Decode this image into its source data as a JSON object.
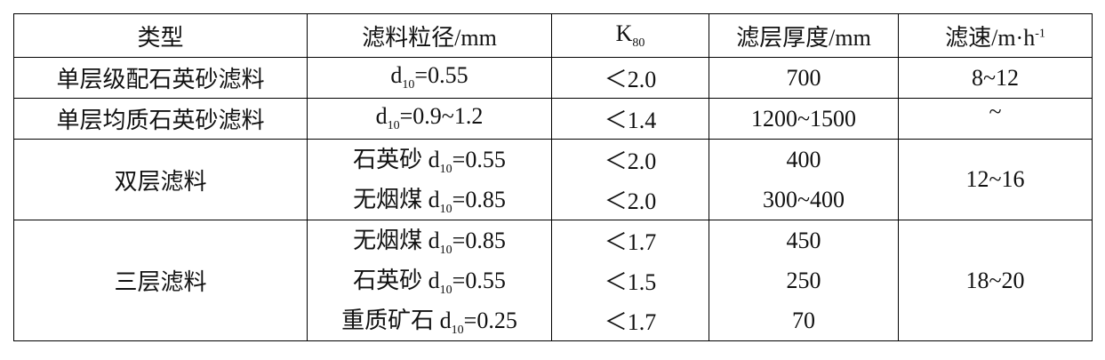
{
  "table": {
    "header": [
      {
        "text": "类型"
      },
      {
        "text": "滤料粒径/mm"
      },
      {
        "text": "K",
        "sub": "80"
      },
      {
        "text": "滤层厚度/mm"
      },
      {
        "text": "滤速/m·h",
        "sup": "-1"
      }
    ],
    "groups": [
      {
        "type": "单层级配石英砂滤料",
        "speed": "8~12",
        "items": [
          {
            "size": {
              "text": "d",
              "sub": "10",
              "after": "=0.55"
            },
            "k80": "＜2.0",
            "thickness": "700"
          }
        ]
      },
      {
        "type": "单层均质石英砂滤料",
        "speed": "~",
        "items": [
          {
            "size": {
              "text": "d",
              "sub": "10",
              "after": "=0.9~1.2"
            },
            "k80": "＜1.4",
            "thickness": "1200~1500"
          }
        ]
      },
      {
        "type": "双层滤料",
        "speed": "12~16",
        "items": [
          {
            "size": {
              "text": "石英砂 d",
              "sub": "10",
              "after": "=0.55"
            },
            "k80": "＜2.0",
            "thickness": "400"
          },
          {
            "size": {
              "text": "无烟煤 d",
              "sub": "10",
              "after": "=0.85"
            },
            "k80": "＜2.0",
            "thickness": "300~400"
          }
        ]
      },
      {
        "type": "三层滤料",
        "speed": "18~20",
        "items": [
          {
            "size": {
              "text": "无烟煤 d",
              "sub": "10",
              "after": "=0.85"
            },
            "k80": "＜1.7",
            "thickness": "450"
          },
          {
            "size": {
              "text": "石英砂 d",
              "sub": "10",
              "after": "=0.55"
            },
            "k80": "＜1.5",
            "thickness": "250"
          },
          {
            "size": {
              "text": "重质矿石 d",
              "sub": "10",
              "after": "=0.25"
            },
            "k80": "＜1.7",
            "thickness": "70"
          }
        ]
      }
    ]
  }
}
